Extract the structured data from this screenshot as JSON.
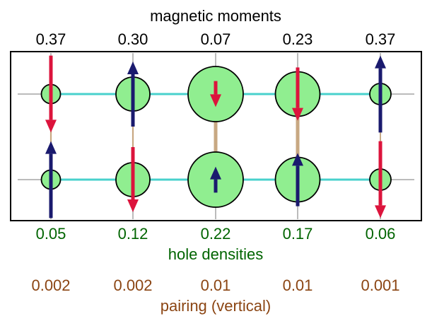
{
  "title_top": "magnetic moments",
  "magnetic_moments": [
    "0.37",
    "0.30",
    "0.07",
    "0.23",
    "0.37"
  ],
  "hole_densities_label": "hole densities",
  "hole_densities": [
    "0.05",
    "0.12",
    "0.22",
    "0.17",
    "0.06"
  ],
  "pairing_label": "pairing (vertical)",
  "pairing": [
    "0.002",
    "0.002",
    "0.01",
    "0.01",
    "0.001"
  ],
  "lattice": {
    "columns": 5,
    "rows": 2,
    "hole_density_values": [
      [
        0.05,
        0.12,
        0.22,
        0.17,
        0.06
      ],
      [
        0.05,
        0.12,
        0.22,
        0.17,
        0.06
      ]
    ],
    "spin_direction": [
      [
        "down",
        "up",
        "down",
        "down",
        "up"
      ],
      [
        "up",
        "down",
        "up",
        "up",
        "down"
      ]
    ],
    "spin_magnitude": [
      [
        0.37,
        0.3,
        0.07,
        0.23,
        0.37
      ],
      [
        0.37,
        0.3,
        0.07,
        0.23,
        0.37
      ]
    ]
  },
  "colors": {
    "up_arrow": "#1a1a6e",
    "down_arrow": "#dc143c",
    "site_fill": "#90ee90",
    "horizontal_bond": "#48d1cc",
    "vertical_bond": "#c8a882",
    "grid_line": "#bbbbbb",
    "label_top": "#000000",
    "label_holes": "#006400",
    "label_pairing": "#8b4513"
  }
}
